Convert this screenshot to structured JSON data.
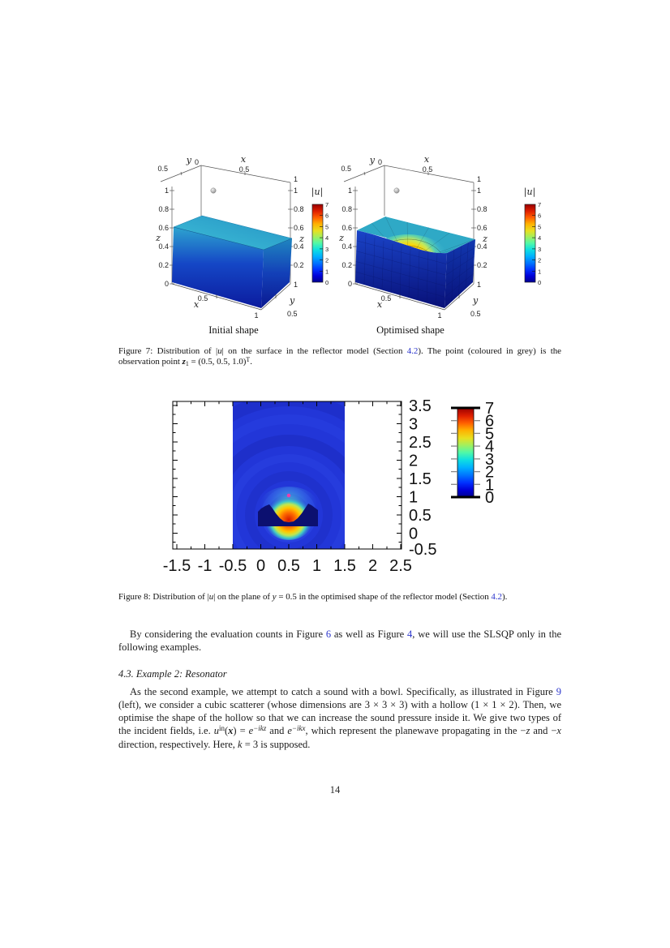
{
  "page": {
    "number": "14"
  },
  "figure7": {
    "caption_left": "Initial shape",
    "caption_right": "Optimised shape",
    "colorbar_title": "|u|",
    "colorbar_ticks": [
      "7",
      "6",
      "5",
      "4",
      "3",
      "2",
      "1",
      "0"
    ],
    "axis": {
      "x_label": "x",
      "y_label": "y",
      "z_label": "z",
      "origin": "0",
      "y_top_tick": "0.5",
      "x_top_tick": "0.5",
      "x_top_end": "1",
      "z_ticks": [
        "1",
        "0.8",
        "0.6",
        "0.4",
        "0.2",
        "0"
      ],
      "z_ticks_right": [
        "1",
        "0.8",
        "0.6",
        "0.4",
        "0.2"
      ],
      "x_bottom_ticks": [
        "0.5",
        "1"
      ],
      "y_bottom_ticks": [
        "1",
        "0.5"
      ]
    },
    "caption_segments": [
      {
        "t": "Figure 7: Distribution of |"
      },
      {
        "t": "u",
        "c": "i"
      },
      {
        "t": "| on the surface in the reflector model (Section "
      },
      {
        "t": "4.2",
        "c": "link"
      },
      {
        "t": "). The point (coloured in grey) is the observation point "
      },
      {
        "t": "z",
        "c": "bi"
      },
      {
        "t": "1",
        "c": "sub"
      },
      {
        "t": " = (0.5, 0.5, 1.0)"
      },
      {
        "t": "T",
        "c": "sup"
      },
      {
        "t": "."
      }
    ]
  },
  "figure8": {
    "x_ticks": [
      "-1.5",
      "-1",
      "-0.5",
      "0",
      "0.5",
      "1",
      "1.5",
      "2",
      "2.5"
    ],
    "y_ticks": [
      "3.5",
      "3",
      "2.5",
      "2",
      "1.5",
      "1",
      "0.5",
      "0",
      "-0.5"
    ],
    "colorbar_ticks": [
      "7",
      "6",
      "5",
      "4",
      "3",
      "2",
      "1",
      "0"
    ],
    "caption_segments": [
      {
        "t": "Figure 8: Distribution of |"
      },
      {
        "t": "u",
        "c": "i"
      },
      {
        "t": "| on the plane of "
      },
      {
        "t": "y",
        "c": "i"
      },
      {
        "t": " = 0.5 in the optimised shape of the reflector model (Section "
      },
      {
        "t": "4.2",
        "c": "link"
      },
      {
        "t": ")."
      }
    ]
  },
  "body": {
    "para1_segments": [
      {
        "t": "By considering the evaluation counts in Figure "
      },
      {
        "t": "6",
        "c": "link"
      },
      {
        "t": " as well as Figure "
      },
      {
        "t": "4",
        "c": "link"
      },
      {
        "t": ", we will use the SLSQP only in the following examples."
      }
    ],
    "heading": "4.3. Example 2: Resonator",
    "para2_segments": [
      {
        "t": "As the second example, we attempt to catch a sound with a bowl.  Specifically, as illustrated in Figure "
      },
      {
        "t": "9",
        "c": "link"
      },
      {
        "t": " (left), we consider a cubic scatterer (whose dimensions are 3 × 3 × 3) with a hollow (1 × 1 × 2). Then, we optimise the shape of the hollow so that we can increase the sound pressure inside it. We give two types of the incident fields, i.e. "
      },
      {
        "t": "u",
        "c": "i"
      },
      {
        "t": "in",
        "c": "sup"
      },
      {
        "t": "("
      },
      {
        "t": "x",
        "c": "bi"
      },
      {
        "t": ") = "
      },
      {
        "t": "e",
        "c": "i"
      },
      {
        "t": "−ikz",
        "c": "i sup"
      },
      {
        "t": " and "
      },
      {
        "t": "e",
        "c": "i"
      },
      {
        "t": "−ikx",
        "c": "i sup"
      },
      {
        "t": ", which represent the planewave propagating in the −"
      },
      {
        "t": "z",
        "c": "i"
      },
      {
        "t": " and −"
      },
      {
        "t": "x",
        "c": "i"
      },
      {
        "t": " direction, respectively. Here, "
      },
      {
        "t": "k",
        "c": "i"
      },
      {
        "t": " = 3 is supposed."
      }
    ]
  }
}
